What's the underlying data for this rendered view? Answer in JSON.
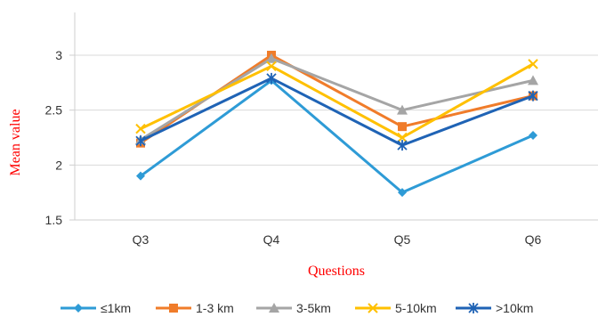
{
  "chart_data": {
    "type": "line",
    "categories": [
      "Q3",
      "Q4",
      "Q5",
      "Q6"
    ],
    "series": [
      {
        "name": "≤1km",
        "values": [
          1.9,
          2.77,
          1.75,
          2.27
        ],
        "color": "#2e9bd6",
        "marker": "diamond"
      },
      {
        "name": "1-3 km",
        "values": [
          2.2,
          3.0,
          2.35,
          2.63
        ],
        "color": "#f07c2a",
        "marker": "square"
      },
      {
        "name": "3-5km",
        "values": [
          2.23,
          2.97,
          2.5,
          2.77
        ],
        "color": "#a5a5a5",
        "marker": "triangle"
      },
      {
        "name": "5-10km",
        "values": [
          2.33,
          2.9,
          2.25,
          2.92
        ],
        "color": "#ffc000",
        "marker": "x"
      },
      {
        "name": ">10km",
        "values": [
          2.22,
          2.79,
          2.18,
          2.63
        ],
        "color": "#1f63b5",
        "marker": "star"
      }
    ],
    "xlabel": "Questions",
    "ylabel": "Mean value",
    "ylim": [
      1.5,
      3.3
    ],
    "yticks": [
      1.5,
      2,
      2.5,
      3
    ],
    "ytick_labels": [
      "1.5",
      "2",
      "2.5",
      "3"
    ],
    "grid": "horizontal",
    "legend_position": "bottom"
  }
}
